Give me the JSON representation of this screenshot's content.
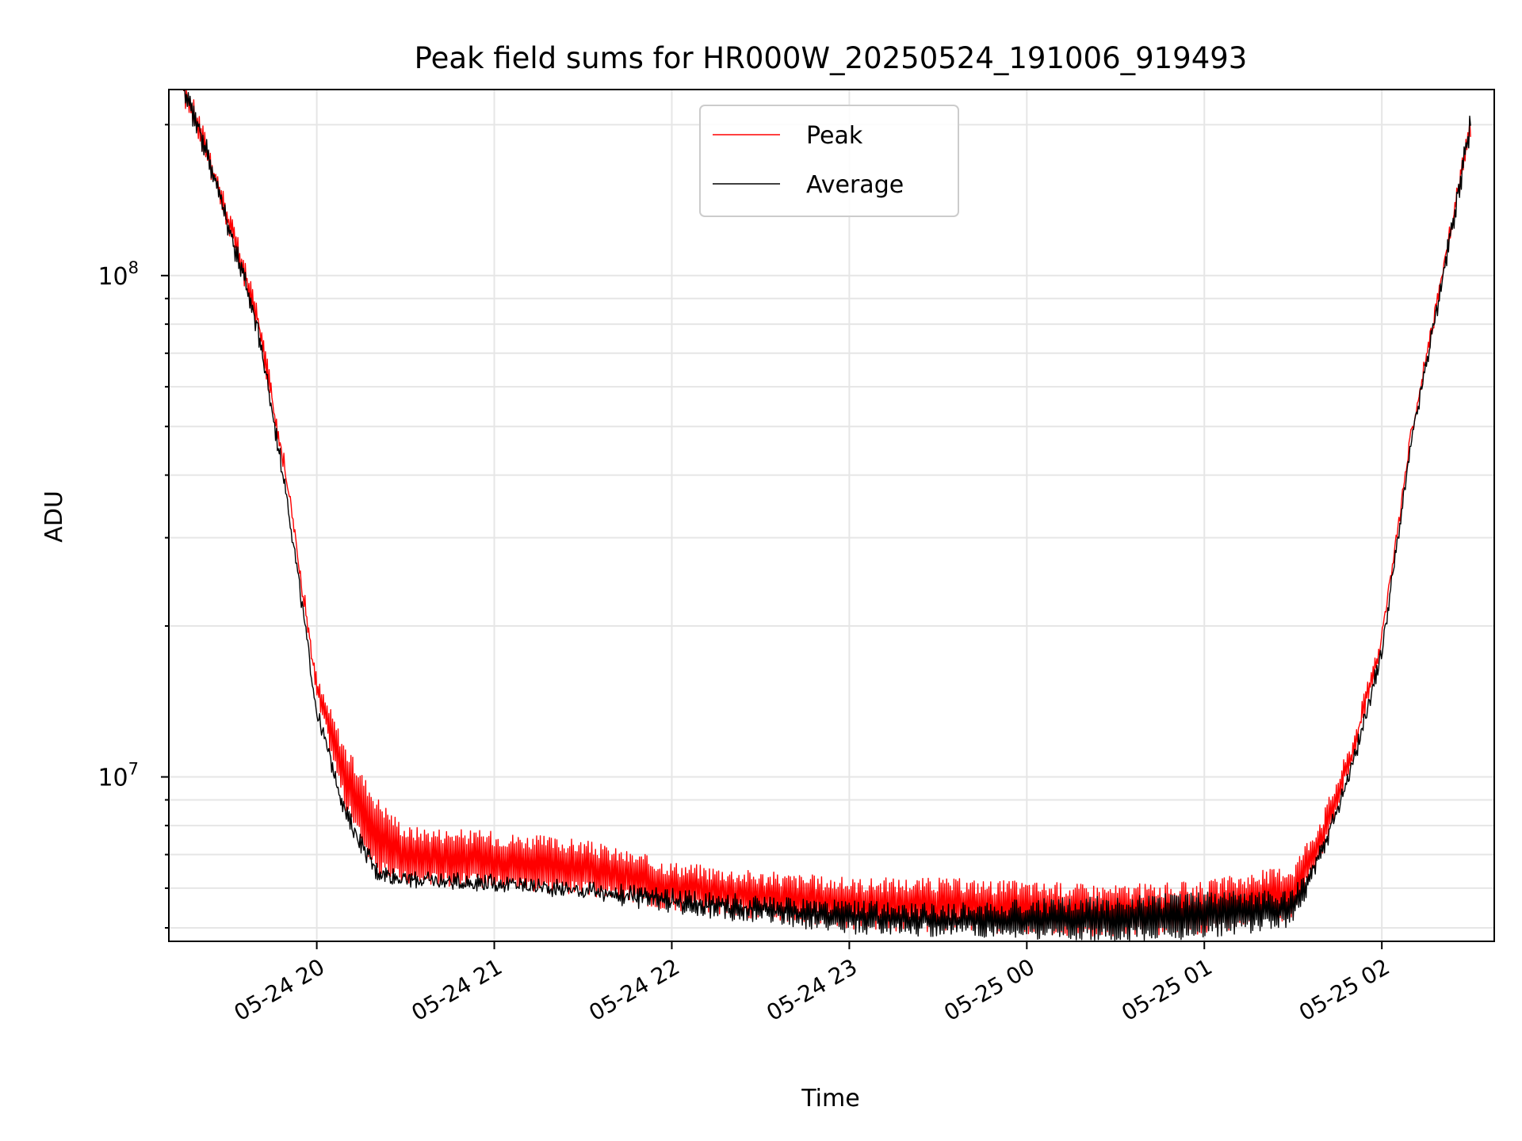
{
  "chart_data": {
    "type": "line",
    "title": "Peak field sums for HR000W_20250524_191006_919493",
    "xlabel": "Time",
    "ylabel": "ADU",
    "yscale": "log",
    "ylim": [
      4700000,
      235000000
    ],
    "xlim": [
      "2025-05-24 19:10",
      "2025-05-25 02:38"
    ],
    "x_ticks": [
      {
        "t": "2025-05-24 20:00",
        "label": "05-24 20"
      },
      {
        "t": "2025-05-24 21:00",
        "label": "05-24 21"
      },
      {
        "t": "2025-05-24 22:00",
        "label": "05-24 22"
      },
      {
        "t": "2025-05-24 23:00",
        "label": "05-24 23"
      },
      {
        "t": "2025-05-25 00:00",
        "label": "05-25 00"
      },
      {
        "t": "2025-05-25 01:00",
        "label": "05-25 01"
      },
      {
        "t": "2025-05-25 02:00",
        "label": "05-25 02"
      }
    ],
    "y_ticks": [
      {
        "value": 10000000,
        "base": "10",
        "exp": "7"
      },
      {
        "value": 100000000,
        "base": "10",
        "exp": "8"
      }
    ],
    "grid": true,
    "legend_position": "upper center",
    "series": [
      {
        "name": "Peak",
        "color": "#ff0000",
        "envelope": true,
        "x": [
          "2025-05-24 19:15",
          "2025-05-24 19:20",
          "2025-05-24 19:30",
          "2025-05-24 19:40",
          "2025-05-24 19:50",
          "2025-05-24 20:00",
          "2025-05-24 20:10",
          "2025-05-24 20:20",
          "2025-05-24 20:30",
          "2025-05-24 21:00",
          "2025-05-24 21:30",
          "2025-05-24 22:00",
          "2025-05-24 22:30",
          "2025-05-24 23:00",
          "2025-05-24 23:30",
          "2025-05-25 00:00",
          "2025-05-25 00:30",
          "2025-05-25 01:00",
          "2025-05-25 01:30",
          "2025-05-25 01:40",
          "2025-05-25 01:50",
          "2025-05-25 02:00",
          "2025-05-25 02:10",
          "2025-05-25 02:20",
          "2025-05-25 02:30"
        ],
        "high": [
          235000000,
          200000000,
          130000000,
          82000000,
          40000000,
          16000000,
          11500000,
          9200000,
          8000000,
          7800000,
          7500000,
          6800000,
          6500000,
          6300000,
          6300000,
          6200000,
          6100000,
          6200000,
          6700000,
          8500000,
          12000000,
          20000000,
          50000000,
          100000000,
          200000000
        ],
        "low": [
          235000000,
          200000000,
          130000000,
          82000000,
          38000000,
          14000000,
          8500000,
          6400000,
          6100000,
          6000000,
          5800000,
          5400000,
          5200000,
          4950000,
          4900000,
          4850000,
          4800000,
          4850000,
          5200000,
          7000000,
          10500000,
          18000000,
          47000000,
          95000000,
          200000000
        ]
      },
      {
        "name": "Average",
        "color": "#000000",
        "envelope": true,
        "x": [
          "2025-05-24 19:15",
          "2025-05-24 19:20",
          "2025-05-24 19:30",
          "2025-05-24 19:40",
          "2025-05-24 19:50",
          "2025-05-24 20:00",
          "2025-05-24 20:10",
          "2025-05-24 20:20",
          "2025-05-24 20:30",
          "2025-05-24 21:00",
          "2025-05-24 21:30",
          "2025-05-24 22:00",
          "2025-05-24 22:30",
          "2025-05-24 23:00",
          "2025-05-24 23:30",
          "2025-05-25 00:00",
          "2025-05-25 00:30",
          "2025-05-25 01:00",
          "2025-05-25 01:30",
          "2025-05-25 01:40",
          "2025-05-25 01:50",
          "2025-05-25 02:00",
          "2025-05-25 02:10",
          "2025-05-25 02:20",
          "2025-05-25 02:30"
        ],
        "high": [
          235000000,
          200000000,
          128000000,
          80000000,
          37000000,
          14000000,
          8800000,
          6800000,
          6500000,
          6400000,
          6200000,
          6000000,
          5800000,
          5700000,
          5600000,
          5700000,
          5800000,
          5900000,
          6000000,
          7500000,
          11000000,
          18500000,
          48000000,
          97000000,
          200000000
        ],
        "low": [
          235000000,
          200000000,
          126000000,
          78000000,
          35000000,
          13000000,
          8000000,
          6200000,
          6000000,
          5900000,
          5700000,
          5300000,
          5100000,
          4850000,
          4800000,
          4750000,
          4700000,
          4750000,
          5000000,
          6800000,
          10000000,
          17000000,
          45000000,
          93000000,
          200000000
        ]
      }
    ]
  }
}
